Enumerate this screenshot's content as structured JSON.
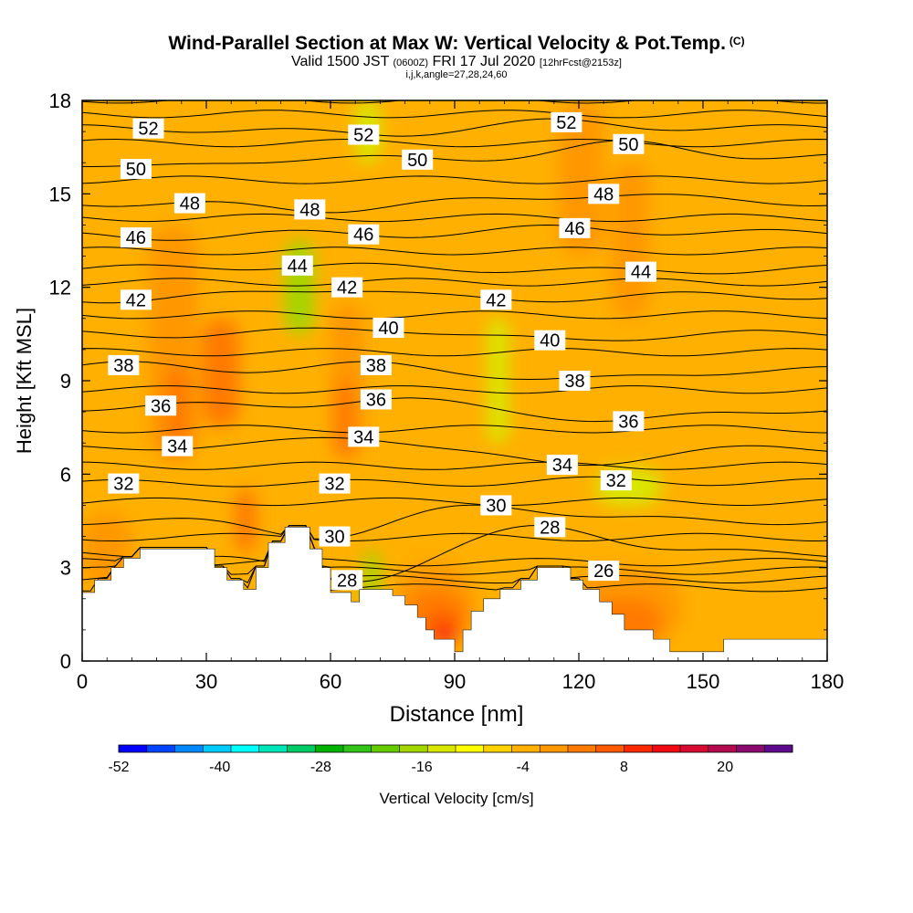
{
  "header": {
    "title_main": "Wind-Parallel Section at Max W: Vertical Velocity & Pot.Temp.",
    "title_suffix": "(C)",
    "valid_prefix": "Valid 1500 JST",
    "valid_utc": "(0600Z)",
    "valid_date": "FRI 17 Jul 2020",
    "forecast_info": "[12hrFcst@2153z]",
    "grid_info": "i,j,k,angle=27,28,24,60"
  },
  "chart_data": {
    "type": "heatmap",
    "xlabel": "Distance [nm]",
    "ylabel": "Height [Kft MSL]",
    "xlim": [
      0,
      180
    ],
    "ylim": [
      0,
      18
    ],
    "x_ticks": [
      0,
      30,
      60,
      90,
      120,
      150,
      180
    ],
    "y_ticks": [
      0,
      3,
      6,
      9,
      12,
      15,
      18
    ],
    "colorbar": {
      "label": "Vertical Velocity [cm/s]",
      "min": -52,
      "max": 28,
      "step": 4,
      "tick_labels": [
        -52,
        -40,
        -28,
        -16,
        -4,
        8,
        20
      ],
      "colors": [
        "#0000ff",
        "#0044ff",
        "#0088ff",
        "#00ccff",
        "#00ffff",
        "#00e6b8",
        "#00cc66",
        "#00b300",
        "#33c41a",
        "#66cc00",
        "#a3d600",
        "#d9e600",
        "#ffff00",
        "#ffd200",
        "#ffb000",
        "#ff9800",
        "#ff7a00",
        "#ff5a00",
        "#ff2a00",
        "#f00a14",
        "#d80a32",
        "#b30a50",
        "#8c0a70",
        "#5e0a8c"
      ]
    },
    "terrain_profile": [
      [
        0,
        2.2
      ],
      [
        3,
        2.2
      ],
      [
        3,
        2.6
      ],
      [
        7,
        2.6
      ],
      [
        7,
        3.0
      ],
      [
        10,
        3.0
      ],
      [
        10,
        3.3
      ],
      [
        14,
        3.3
      ],
      [
        14,
        3.6
      ],
      [
        32,
        3.6
      ],
      [
        32,
        3.0
      ],
      [
        35,
        3.0
      ],
      [
        35,
        2.6
      ],
      [
        39,
        2.6
      ],
      [
        39,
        2.3
      ],
      [
        42,
        2.3
      ],
      [
        42,
        3.0
      ],
      [
        45,
        3.0
      ],
      [
        45,
        3.8
      ],
      [
        49,
        3.8
      ],
      [
        49,
        4.3
      ],
      [
        55,
        4.3
      ],
      [
        55,
        3.6
      ],
      [
        58,
        3.6
      ],
      [
        58,
        3.0
      ],
      [
        60,
        3.0
      ],
      [
        60,
        2.2
      ],
      [
        65,
        2.2
      ],
      [
        65,
        1.9
      ],
      [
        67,
        1.9
      ],
      [
        67,
        2.3
      ],
      [
        75,
        2.3
      ],
      [
        75,
        2.1
      ],
      [
        78,
        2.1
      ],
      [
        78,
        1.8
      ],
      [
        81,
        1.8
      ],
      [
        81,
        1.4
      ],
      [
        83,
        1.4
      ],
      [
        83,
        1.0
      ],
      [
        85,
        1.0
      ],
      [
        85,
        0.7
      ],
      [
        90,
        0.7
      ],
      [
        90,
        0.3
      ],
      [
        92,
        0.3
      ],
      [
        92,
        1.0
      ],
      [
        94,
        1.0
      ],
      [
        94,
        1.6
      ],
      [
        97,
        1.6
      ],
      [
        97,
        2.0
      ],
      [
        101,
        2.0
      ],
      [
        101,
        2.3
      ],
      [
        106,
        2.3
      ],
      [
        106,
        2.6
      ],
      [
        110,
        2.6
      ],
      [
        110,
        3.0
      ],
      [
        118,
        3.0
      ],
      [
        118,
        2.6
      ],
      [
        121,
        2.6
      ],
      [
        121,
        2.3
      ],
      [
        125,
        2.3
      ],
      [
        125,
        1.9
      ],
      [
        128,
        1.9
      ],
      [
        128,
        1.5
      ],
      [
        131,
        1.5
      ],
      [
        131,
        1.0
      ],
      [
        138,
        1.0
      ],
      [
        138,
        0.7
      ],
      [
        142,
        0.7
      ],
      [
        142,
        0.3
      ],
      [
        155,
        0.3
      ],
      [
        155,
        0.7
      ],
      [
        181,
        0.7
      ]
    ],
    "theta_contour_labels": [
      {
        "label": "52",
        "x": 16,
        "y": 17.1
      },
      {
        "label": "52",
        "x": 68,
        "y": 16.9
      },
      {
        "label": "52",
        "x": 117,
        "y": 17.3
      },
      {
        "label": "50",
        "x": 13,
        "y": 15.8
      },
      {
        "label": "50",
        "x": 81,
        "y": 16.1
      },
      {
        "label": "50",
        "x": 132,
        "y": 16.6
      },
      {
        "label": "48",
        "x": 26,
        "y": 14.7
      },
      {
        "label": "48",
        "x": 55,
        "y": 14.5
      },
      {
        "label": "48",
        "x": 126,
        "y": 15.0
      },
      {
        "label": "46",
        "x": 13,
        "y": 13.6
      },
      {
        "label": "46",
        "x": 68,
        "y": 13.7
      },
      {
        "label": "46",
        "x": 119,
        "y": 13.9
      },
      {
        "label": "44",
        "x": 52,
        "y": 12.7
      },
      {
        "label": "44",
        "x": 135,
        "y": 12.5
      },
      {
        "label": "42",
        "x": 13,
        "y": 11.6
      },
      {
        "label": "42",
        "x": 64,
        "y": 12.0
      },
      {
        "label": "42",
        "x": 100,
        "y": 11.6
      },
      {
        "label": "40",
        "x": 74,
        "y": 10.7
      },
      {
        "label": "40",
        "x": 113,
        "y": 10.3
      },
      {
        "label": "38",
        "x": 10,
        "y": 9.5
      },
      {
        "label": "38",
        "x": 71,
        "y": 9.5
      },
      {
        "label": "38",
        "x": 119,
        "y": 9.0
      },
      {
        "label": "36",
        "x": 19,
        "y": 8.2
      },
      {
        "label": "36",
        "x": 71,
        "y": 8.4
      },
      {
        "label": "36",
        "x": 132,
        "y": 7.7
      },
      {
        "label": "34",
        "x": 23,
        "y": 6.9
      },
      {
        "label": "34",
        "x": 68,
        "y": 7.2
      },
      {
        "label": "34",
        "x": 116,
        "y": 6.3
      },
      {
        "label": "32",
        "x": 10,
        "y": 5.7
      },
      {
        "label": "32",
        "x": 61,
        "y": 5.7
      },
      {
        "label": "32",
        "x": 129,
        "y": 5.8
      },
      {
        "label": "30",
        "x": 61,
        "y": 4.0
      },
      {
        "label": "30",
        "x": 100,
        "y": 5.0
      },
      {
        "label": "28",
        "x": 64,
        "y": 2.6
      },
      {
        "label": "28",
        "x": 113,
        "y": 4.3
      },
      {
        "label": "26",
        "x": 126,
        "y": 2.9
      }
    ],
    "velocity_cells": [
      {
        "x": [
          16,
          28
        ],
        "y": [
          6.5,
          14
        ],
        "v": 8
      },
      {
        "x": [
          20,
          26
        ],
        "y": [
          6.5,
          9.5
        ],
        "v": 12
      },
      {
        "x": [
          29,
          38
        ],
        "y": [
          7.5,
          11
        ],
        "v": 12
      },
      {
        "x": [
          31,
          36
        ],
        "y": [
          8,
          10.5
        ],
        "v": 14
      },
      {
        "x": [
          37,
          42
        ],
        "y": [
          3.5,
          5.5
        ],
        "v": 12
      },
      {
        "x": [
          60,
          68
        ],
        "y": [
          6.5,
          11.5
        ],
        "v": 8
      },
      {
        "x": [
          61,
          66
        ],
        "y": [
          6.5,
          9
        ],
        "v": 12
      },
      {
        "x": [
          75,
          95
        ],
        "y": [
          0.5,
          3.2
        ],
        "v": 10
      },
      {
        "x": [
          78,
          93
        ],
        "y": [
          0.5,
          2.3
        ],
        "v": 14
      },
      {
        "x": [
          83,
          91
        ],
        "y": [
          0.5,
          1.6
        ],
        "v": 18
      },
      {
        "x": [
          86,
          90
        ],
        "y": [
          0.5,
          1.1
        ],
        "v": 24
      },
      {
        "x": [
          115,
          126
        ],
        "y": [
          13,
          18
        ],
        "v": 8
      },
      {
        "x": [
          128,
          137
        ],
        "y": [
          11,
          16
        ],
        "v": 8
      },
      {
        "x": [
          118,
          145
        ],
        "y": [
          0.5,
          3
        ],
        "v": 10
      },
      {
        "x": [
          122,
          140
        ],
        "y": [
          0.5,
          2
        ],
        "v": 12
      },
      {
        "x": [
          0,
          12
        ],
        "y": [
          2.3,
          4.8
        ],
        "v": 8
      },
      {
        "x": [
          49,
          56
        ],
        "y": [
          10.5,
          13.5
        ],
        "v": -12
      },
      {
        "x": [
          68,
          72
        ],
        "y": [
          1.8,
          3.5
        ],
        "v": -10
      },
      {
        "x": [
          98,
          103
        ],
        "y": [
          7,
          11
        ],
        "v": -6
      },
      {
        "x": [
          124,
          140
        ],
        "y": [
          5,
          6.2
        ],
        "v": -6
      },
      {
        "x": [
          66,
          72
        ],
        "y": [
          16,
          18
        ],
        "v": -6
      }
    ]
  }
}
